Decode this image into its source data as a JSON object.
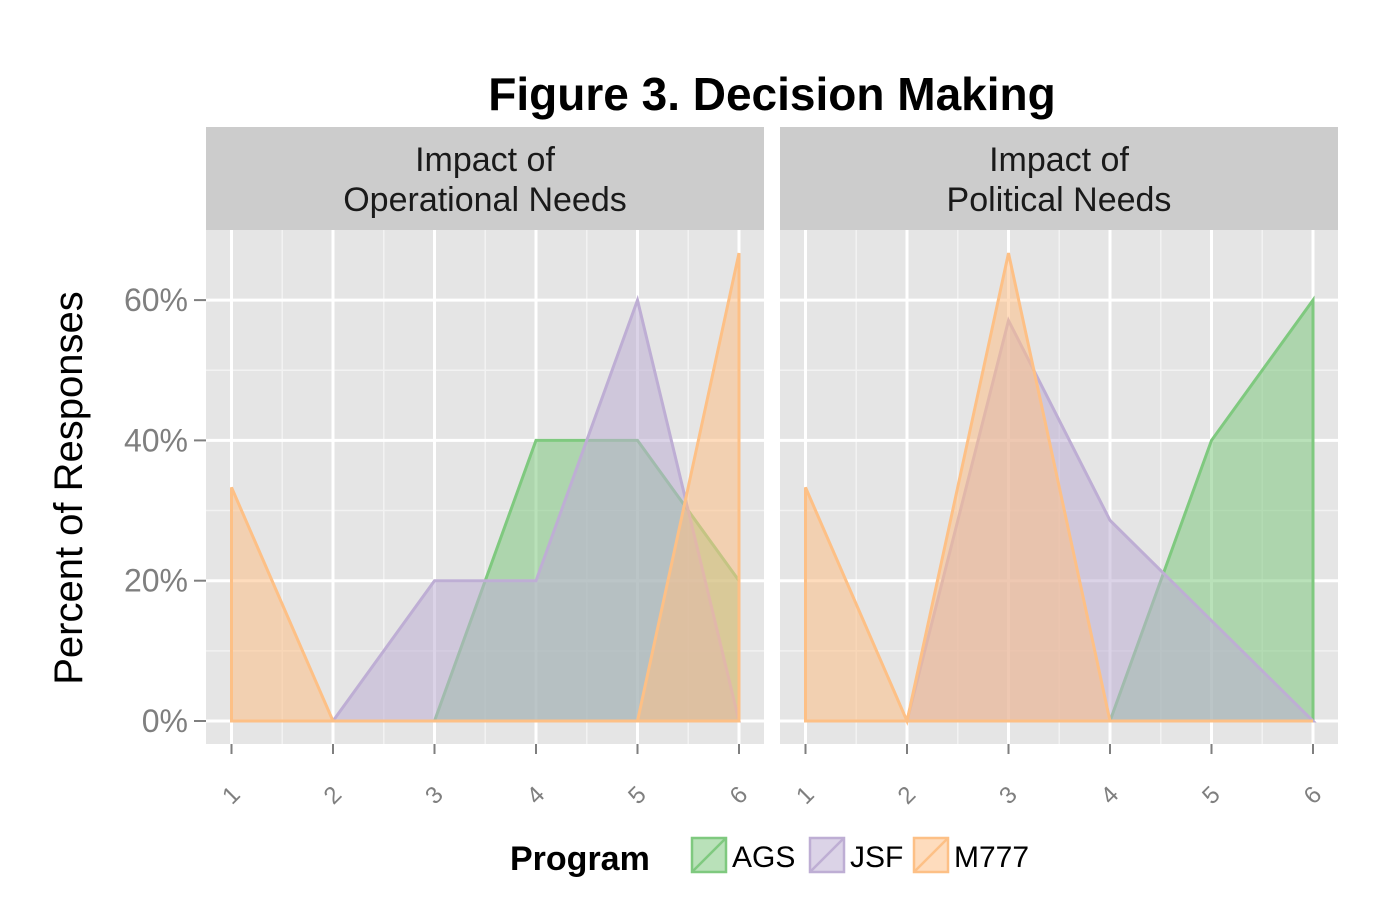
{
  "chart_data": {
    "type": "area",
    "title": "Figure 3. Decision Making",
    "ylabel": "Percent of Responses",
    "xlabel": "",
    "x": [
      "1",
      "2",
      "3",
      "4",
      "5",
      "6"
    ],
    "ylim": [
      0,
      0.7
    ],
    "yticks": [
      0,
      0.2,
      0.4,
      0.6
    ],
    "ytick_labels": [
      "0%",
      "20%",
      "40%",
      "60%"
    ],
    "grid": true,
    "legend": {
      "title": "Program",
      "position": "bottom",
      "entries": [
        {
          "name": "AGS",
          "color": "#7fc97f"
        },
        {
          "name": "JSF",
          "color": "#beaed4"
        },
        {
          "name": "M777",
          "color": "#fdc086"
        }
      ]
    },
    "panels": [
      {
        "strip": [
          "Impact of",
          "Operational Needs"
        ],
        "series": [
          {
            "name": "AGS",
            "values": [
              0,
              0,
              0,
              0.4,
              0.4,
              0.2
            ]
          },
          {
            "name": "JSF",
            "values": [
              0,
              0,
              0.2,
              0.2,
              0.6,
              0
            ]
          },
          {
            "name": "M777",
            "values": [
              0.333,
              0,
              0,
              0,
              0,
              0.667
            ]
          }
        ]
      },
      {
        "strip": [
          "Impact of",
          "Political Needs"
        ],
        "series": [
          {
            "name": "AGS",
            "values": [
              0,
              0,
              0,
              0,
              0.4,
              0.6
            ]
          },
          {
            "name": "JSF",
            "values": [
              0,
              0,
              0.571,
              0.286,
              0.143,
              0
            ]
          },
          {
            "name": "M777",
            "values": [
              0.333,
              0,
              0.667,
              0,
              0,
              0
            ]
          }
        ]
      }
    ]
  }
}
